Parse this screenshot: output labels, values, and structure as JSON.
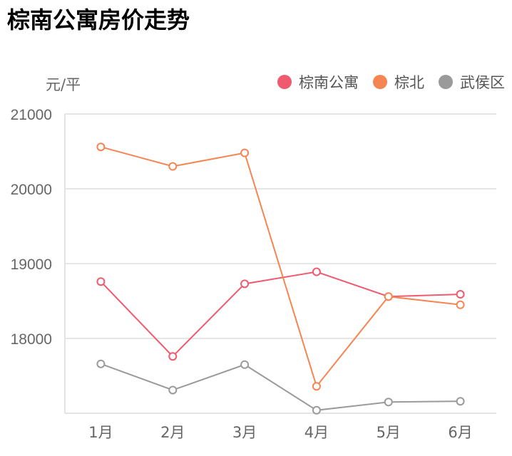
{
  "chart_data": {
    "type": "line",
    "title": "棕南公寓房价走势",
    "ylabel": "元/平",
    "xlabel": "",
    "categories": [
      "1月",
      "2月",
      "3月",
      "4月",
      "5月",
      "6月"
    ],
    "series": [
      {
        "name": "棕南公寓",
        "color": "#f05a6e",
        "values": [
          18760,
          17760,
          18730,
          18890,
          18560,
          18590
        ]
      },
      {
        "name": "棕北",
        "color": "#f58552",
        "values": [
          20560,
          20300,
          20480,
          17360,
          18560,
          18450
        ]
      },
      {
        "name": "武侯区",
        "color": "#9a9a9a",
        "values": [
          17660,
          17310,
          17650,
          17040,
          17150,
          17160
        ]
      }
    ],
    "yticks": [
      21000,
      20000,
      19000,
      18000
    ],
    "ylim": [
      17000,
      21000
    ],
    "grid": true,
    "legend_position": "top-right"
  }
}
